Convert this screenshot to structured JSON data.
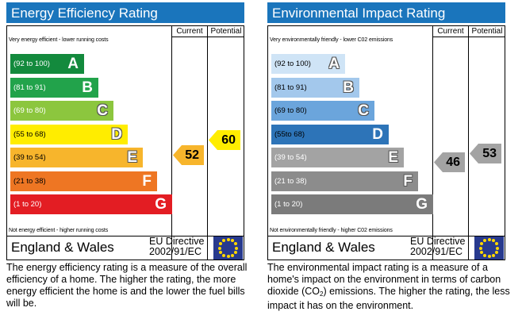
{
  "energy": {
    "title": "Energy Efficiency Rating",
    "col_current": "Current",
    "col_potential": "Potential",
    "top_note": "Very energy efficient - lower running costs",
    "bottom_note": "Not energy efficient - higher running costs",
    "bands": [
      {
        "range": "(92 to 100)",
        "letter": "A",
        "color": "#138a3d"
      },
      {
        "range": "(81 to 91)",
        "letter": "B",
        "color": "#22a34b"
      },
      {
        "range": "(69 to 80)",
        "letter": "C",
        "color": "#8cc63e"
      },
      {
        "range": "(55 to 68)",
        "letter": "D",
        "color": "#ffed00"
      },
      {
        "range": "(39 to 54)",
        "letter": "E",
        "color": "#f7b52c"
      },
      {
        "range": "(21 to 38)",
        "letter": "F",
        "color": "#ee7623"
      },
      {
        "range": "(1 to 20)",
        "letter": "G",
        "color": "#e31d23"
      }
    ],
    "current": {
      "value": "52",
      "band": "E",
      "color": "#f7b52c"
    },
    "potential": {
      "value": "60",
      "band": "D",
      "color": "#ffed00"
    },
    "region": "England & Wales",
    "directive_line1": "EU Directive",
    "directive_line2": "2002/91/EC",
    "description": "The energy efficiency rating is a measure of the overall efficiency of a home. The higher the rating, the more energy efficient the home is and the lower the fuel bills will be."
  },
  "environment": {
    "title": "Environmental Impact Rating",
    "col_current": "Current",
    "col_potential": "Potential",
    "top_note": "Very environmentally friendly - lower C02 emissions",
    "bottom_note": "Not environmentally friendly - higher C02 emissions",
    "bands": [
      {
        "range": "(92 to 100)",
        "letter": "A",
        "color": "#cfe4f6"
      },
      {
        "range": "(81 to 91)",
        "letter": "B",
        "color": "#a3c8ec"
      },
      {
        "range": "(69 to 80)",
        "letter": "C",
        "color": "#6ba5dc"
      },
      {
        "range": "(55to 68)",
        "letter": "D",
        "color": "#2d74b8"
      },
      {
        "range": "(39 to 54)",
        "letter": "E",
        "color": "#a3a3a3"
      },
      {
        "range": "(21 to 38)",
        "letter": "F",
        "color": "#8c8c8c"
      },
      {
        "range": "(1 to 20)",
        "letter": "G",
        "color": "#7b7b7b"
      }
    ],
    "current": {
      "value": "46",
      "band": "E",
      "color": "#a3a3a3"
    },
    "potential": {
      "value": "53",
      "band": "E",
      "color": "#a3a3a3"
    },
    "region": "England & Wales",
    "directive_line1": "EU Directive",
    "directive_line2": "2002/91/EC",
    "description_part1": "The environmental impact rating is a measure of a home's impact on the environment in terms of carbon dioxide (CO",
    "description_sub": "2",
    "description_part2": ") emissions. The higher the rating, the less impact it has on the environment."
  }
}
